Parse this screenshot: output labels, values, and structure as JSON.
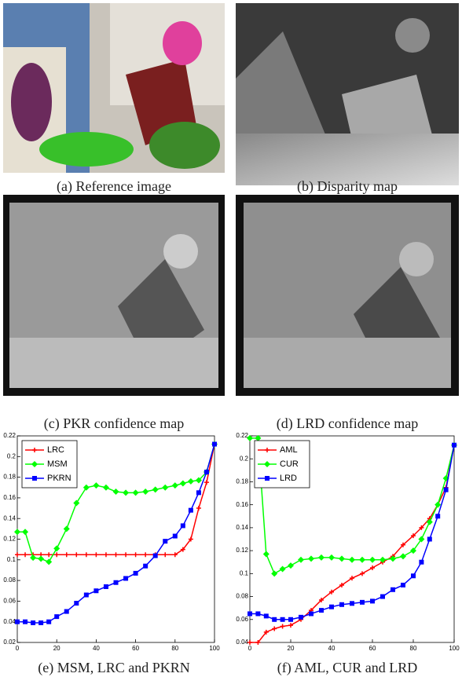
{
  "figure": {
    "captions": [
      "(a) Reference image",
      "(b) Disparity map",
      "(c) PKR confidence map",
      "(d) LRD confidence map",
      "(e) MSM, LRC and PKRN",
      "(f) AML, CUR and LRD"
    ]
  },
  "chart_data": [
    {
      "type": "line",
      "legend": "upper-left",
      "x": [
        0,
        4,
        8,
        12,
        16,
        20,
        25,
        30,
        35,
        40,
        45,
        50,
        55,
        60,
        65,
        70,
        75,
        80,
        84,
        88,
        92,
        96,
        100
      ],
      "xlim": [
        0,
        100
      ],
      "xticks": [
        0,
        20,
        40,
        60,
        80,
        100
      ],
      "ylim": [
        0.02,
        0.22
      ],
      "yticks": [
        0.02,
        0.04,
        0.06,
        0.08,
        0.1,
        0.12,
        0.14,
        0.16,
        0.18,
        0.2,
        0.22
      ],
      "series": [
        {
          "name": "LRC",
          "color": "#ff0000",
          "marker": "plus",
          "values": [
            0.105,
            0.105,
            0.105,
            0.105,
            0.105,
            0.105,
            0.105,
            0.105,
            0.105,
            0.105,
            0.105,
            0.105,
            0.105,
            0.105,
            0.105,
            0.105,
            0.105,
            0.105,
            0.11,
            0.12,
            0.15,
            0.175,
            0.212
          ]
        },
        {
          "name": "MSM",
          "color": "#00ff00",
          "marker": "diamond",
          "values": [
            0.127,
            0.127,
            0.102,
            0.101,
            0.098,
            0.111,
            0.13,
            0.155,
            0.17,
            0.172,
            0.17,
            0.166,
            0.165,
            0.165,
            0.166,
            0.168,
            0.17,
            0.172,
            0.174,
            0.176,
            0.177,
            0.185,
            0.212
          ]
        },
        {
          "name": "PKRN",
          "color": "#0000ff",
          "marker": "square",
          "values": [
            0.04,
            0.04,
            0.039,
            0.039,
            0.04,
            0.045,
            0.05,
            0.058,
            0.066,
            0.07,
            0.074,
            0.078,
            0.082,
            0.087,
            0.094,
            0.104,
            0.118,
            0.123,
            0.133,
            0.148,
            0.165,
            0.185,
            0.212
          ]
        }
      ]
    },
    {
      "type": "line",
      "legend": "upper-left",
      "x": [
        0,
        4,
        8,
        12,
        16,
        20,
        25,
        30,
        35,
        40,
        45,
        50,
        55,
        60,
        65,
        70,
        75,
        80,
        84,
        88,
        92,
        96,
        100
      ],
      "xlim": [
        0,
        100
      ],
      "xticks": [
        0,
        20,
        40,
        60,
        80,
        100
      ],
      "ylim": [
        0.04,
        0.22
      ],
      "yticks": [
        0.04,
        0.06,
        0.08,
        0.1,
        0.12,
        0.14,
        0.16,
        0.18,
        0.2,
        0.22
      ],
      "series": [
        {
          "name": "AML",
          "color": "#ff0000",
          "marker": "plus",
          "values": [
            0.04,
            0.04,
            0.049,
            0.052,
            0.054,
            0.055,
            0.06,
            0.068,
            0.077,
            0.084,
            0.09,
            0.096,
            0.1,
            0.105,
            0.11,
            0.115,
            0.125,
            0.133,
            0.14,
            0.148,
            0.16,
            0.175,
            0.212
          ]
        },
        {
          "name": "CUR",
          "color": "#00ff00",
          "marker": "diamond",
          "values": [
            0.218,
            0.218,
            0.117,
            0.1,
            0.104,
            0.107,
            0.112,
            0.113,
            0.114,
            0.114,
            0.113,
            0.112,
            0.112,
            0.112,
            0.112,
            0.113,
            0.115,
            0.12,
            0.13,
            0.145,
            0.16,
            0.183,
            0.212
          ]
        },
        {
          "name": "LRD",
          "color": "#0000ff",
          "marker": "square",
          "values": [
            0.065,
            0.065,
            0.063,
            0.06,
            0.06,
            0.06,
            0.062,
            0.065,
            0.068,
            0.071,
            0.073,
            0.074,
            0.075,
            0.076,
            0.08,
            0.086,
            0.09,
            0.098,
            0.11,
            0.13,
            0.15,
            0.173,
            0.212
          ]
        }
      ]
    }
  ]
}
